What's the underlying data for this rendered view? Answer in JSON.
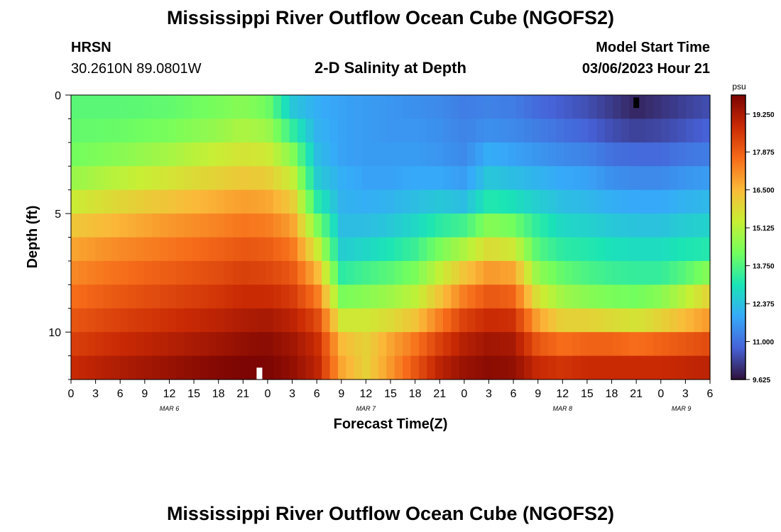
{
  "header": {
    "main_title": "Mississippi River Outflow Ocean Cube (NGOFS2)",
    "station_name": "HRSN",
    "station_coords": "30.2610N  89.0801W",
    "subtitle": "2-D Salinity at Depth",
    "model_start_label": "Model Start Time",
    "model_start_value": "03/06/2023 Hour 21"
  },
  "footer": {
    "repeated_title": "Mississippi River Outflow Ocean Cube (NGOFS2)"
  },
  "colors": {
    "colormap_stops": [
      "#30123b",
      "#4662d7",
      "#36aaf9",
      "#1ae4b6",
      "#72fe5e",
      "#c8ef34",
      "#faba39",
      "#f66b19",
      "#ca2a04",
      "#7a0403"
    ]
  },
  "chart_data": {
    "type": "heatmap",
    "title": "2-D Salinity at Depth",
    "xlabel": "Forecast Time(Z)",
    "ylabel": "Depth (ft)",
    "x_hours_range": [
      0,
      78
    ],
    "x_tick_step_hours": 3,
    "x_tick_labels": [
      "0",
      "3",
      "6",
      "9",
      "12",
      "15",
      "18",
      "21",
      "0",
      "3",
      "6",
      "9",
      "12",
      "15",
      "18",
      "21",
      "0",
      "3",
      "6",
      "9",
      "12",
      "15",
      "18",
      "21",
      "0",
      "3",
      "6"
    ],
    "date_labels": [
      {
        "label": "MAR 6",
        "hour": 12
      },
      {
        "label": "MAR 7",
        "hour": 36
      },
      {
        "label": "MAR 8",
        "hour": 60
      },
      {
        "label": "MAR 9",
        "hour": 74.5
      }
    ],
    "ylim": [
      0,
      12
    ],
    "y_major_ticks": [
      0,
      5,
      10
    ],
    "y_minor_step": 1,
    "depth_levels_ft": [
      0.5,
      1.5,
      2.5,
      3.5,
      4.5,
      5.5,
      6.5,
      7.5,
      8.5,
      9.5,
      10.5,
      11.5
    ],
    "time_columns": 79,
    "colorbar": {
      "unit": "psu",
      "min": 9.625,
      "max": 19.938,
      "tick_values": [
        9.625,
        11.0,
        12.375,
        13.75,
        15.125,
        16.5,
        17.875,
        19.25
      ],
      "tick_labels": [
        "9.625",
        "11.000",
        "12.375",
        "13.750",
        "15.125",
        "16.500",
        "17.875",
        "19.250"
      ]
    },
    "markers": [
      {
        "kind": "white-bar",
        "hour": 23,
        "depth_from": 11.5,
        "depth_to": 12
      },
      {
        "kind": "black-bar",
        "hour": 69,
        "depth_from": 0.1,
        "depth_to": 0.55
      }
    ],
    "profiles_psu": [
      {
        "hour": 0,
        "values": [
          13.9,
          14.0,
          14.2,
          14.7,
          15.4,
          16.2,
          16.8,
          17.2,
          17.6,
          18.0,
          18.4,
          18.8
        ]
      },
      {
        "hour": 6,
        "values": [
          13.9,
          14.1,
          14.5,
          15.2,
          15.9,
          16.6,
          17.2,
          17.6,
          18.0,
          18.4,
          18.8,
          19.2
        ]
      },
      {
        "hour": 12,
        "values": [
          14.0,
          14.3,
          14.9,
          15.6,
          16.3,
          17.0,
          17.5,
          17.9,
          18.3,
          18.7,
          19.1,
          19.5
        ]
      },
      {
        "hour": 18,
        "values": [
          14.3,
          14.7,
          15.4,
          16.0,
          16.7,
          17.3,
          17.8,
          18.2,
          18.6,
          19.0,
          19.4,
          19.8
        ]
      },
      {
        "hour": 21,
        "values": [
          14.5,
          15.0,
          15.6,
          16.2,
          16.9,
          17.5,
          18.0,
          18.4,
          18.8,
          19.2,
          19.6,
          19.9
        ]
      },
      {
        "hour": 24,
        "values": [
          14.2,
          14.8,
          15.5,
          16.1,
          16.8,
          17.4,
          17.9,
          18.3,
          18.8,
          19.3,
          19.7,
          19.9
        ]
      },
      {
        "hour": 27,
        "values": [
          12.5,
          13.4,
          14.5,
          15.4,
          16.2,
          16.9,
          17.5,
          18.0,
          18.5,
          19.0,
          19.4,
          19.6
        ]
      },
      {
        "hour": 30,
        "values": [
          12.0,
          12.1,
          12.3,
          12.6,
          13.3,
          14.4,
          15.5,
          16.6,
          17.5,
          18.3,
          18.8,
          19.0
        ]
      },
      {
        "hour": 33,
        "values": [
          11.8,
          11.8,
          11.8,
          12.0,
          12.1,
          12.3,
          12.6,
          13.3,
          14.3,
          15.5,
          16.5,
          16.8
        ]
      },
      {
        "hour": 36,
        "values": [
          11.7,
          11.7,
          11.7,
          11.8,
          12.0,
          12.3,
          12.8,
          13.6,
          14.5,
          15.5,
          16.0,
          16.0
        ]
      },
      {
        "hour": 39,
        "values": [
          11.6,
          11.6,
          11.7,
          11.8,
          12.1,
          12.5,
          13.1,
          13.9,
          14.8,
          15.8,
          16.8,
          17.0
        ]
      },
      {
        "hour": 42,
        "values": [
          11.5,
          11.6,
          11.7,
          11.9,
          12.3,
          12.8,
          13.5,
          14.3,
          15.2,
          16.3,
          17.5,
          18.0
        ]
      },
      {
        "hour": 45,
        "values": [
          11.4,
          11.5,
          11.6,
          11.9,
          12.5,
          13.3,
          14.3,
          15.3,
          16.3,
          17.4,
          18.4,
          19.0
        ]
      },
      {
        "hour": 48,
        "values": [
          11.2,
          11.3,
          11.4,
          11.7,
          12.3,
          13.6,
          15.0,
          16.3,
          17.4,
          18.4,
          19.1,
          19.5
        ]
      },
      {
        "hour": 51,
        "values": [
          11.3,
          11.5,
          12.0,
          12.5,
          13.2,
          14.5,
          15.8,
          17.0,
          18.0,
          18.8,
          19.4,
          19.7
        ]
      },
      {
        "hour": 54,
        "values": [
          11.2,
          11.4,
          11.8,
          12.3,
          13.0,
          14.2,
          15.5,
          16.8,
          17.8,
          18.7,
          19.3,
          19.6
        ]
      },
      {
        "hour": 57,
        "values": [
          10.9,
          11.2,
          11.6,
          12.1,
          12.6,
          13.3,
          13.8,
          14.6,
          15.6,
          16.8,
          18.0,
          18.8
        ]
      },
      {
        "hour": 60,
        "values": [
          10.7,
          11.0,
          11.4,
          11.9,
          12.3,
          12.8,
          13.3,
          14.0,
          14.8,
          16.0,
          17.6,
          18.6
        ]
      },
      {
        "hour": 63,
        "values": [
          10.5,
          10.8,
          11.3,
          11.8,
          12.2,
          12.7,
          13.2,
          13.7,
          14.5,
          16.0,
          17.8,
          18.8
        ]
      },
      {
        "hour": 66,
        "values": [
          10.2,
          10.5,
          11.0,
          11.5,
          12.0,
          12.5,
          13.0,
          13.5,
          14.3,
          15.8,
          17.8,
          18.8
        ]
      },
      {
        "hour": 69,
        "values": [
          9.9,
          10.3,
          10.9,
          11.4,
          11.9,
          12.4,
          12.9,
          13.4,
          14.2,
          15.6,
          17.6,
          18.8
        ]
      },
      {
        "hour": 72,
        "values": [
          10.1,
          10.4,
          10.9,
          11.4,
          11.9,
          12.4,
          12.9,
          13.4,
          14.5,
          16.0,
          17.8,
          18.8
        ]
      },
      {
        "hour": 75,
        "values": [
          10.3,
          10.6,
          11.1,
          11.6,
          12.1,
          12.6,
          13.1,
          13.9,
          15.2,
          16.5,
          18.0,
          18.9
        ]
      },
      {
        "hour": 78,
        "values": [
          10.5,
          10.8,
          11.2,
          11.7,
          12.2,
          12.7,
          13.2,
          14.5,
          16.0,
          17.0,
          18.2,
          19.0
        ]
      }
    ]
  }
}
